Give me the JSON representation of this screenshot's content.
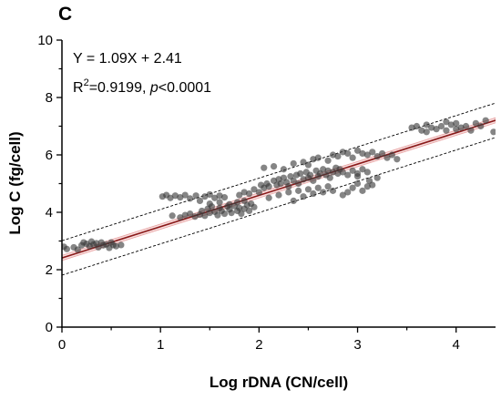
{
  "panel_label": "C",
  "chart_data": {
    "type": "scatter",
    "xlabel": "Log rDNA (CN/cell)",
    "ylabel": "Log C (fg/cell)",
    "xlim": [
      0,
      4.4
    ],
    "ylim": [
      0,
      10
    ],
    "xticks": [
      "0",
      "1",
      "2",
      "3",
      "4"
    ],
    "yticks": [
      "0",
      "2",
      "4",
      "6",
      "8",
      "10"
    ],
    "grid": false,
    "annotations": {
      "equation": "Y = 1.09X + 2.41",
      "r2_prefix": "R",
      "r2_sup": "2",
      "r2_value": "=0.9199, ",
      "p_symbol": "p",
      "p_value": "<0.0001"
    },
    "regression": {
      "slope": 1.09,
      "intercept": 2.41,
      "color": "#8b1a1a"
    },
    "confidence_band_color": "#e8a0a0",
    "prediction_interval": {
      "offset": 0.6,
      "style": "dashed"
    },
    "point_color": "#3a3a3a",
    "points": [
      [
        0.02,
        2.8
      ],
      [
        0.05,
        2.72
      ],
      [
        0.12,
        2.78
      ],
      [
        0.16,
        2.7
      ],
      [
        0.2,
        2.85
      ],
      [
        0.22,
        2.95
      ],
      [
        0.25,
        2.9
      ],
      [
        0.28,
        2.82
      ],
      [
        0.3,
        2.98
      ],
      [
        0.32,
        2.88
      ],
      [
        0.35,
        2.92
      ],
      [
        0.37,
        2.78
      ],
      [
        0.4,
        2.95
      ],
      [
        0.42,
        2.85
      ],
      [
        0.45,
        2.88
      ],
      [
        0.48,
        2.76
      ],
      [
        0.5,
        2.95
      ],
      [
        0.52,
        2.86
      ],
      [
        0.55,
        2.82
      ],
      [
        0.6,
        2.86
      ],
      [
        1.02,
        4.55
      ],
      [
        1.06,
        4.6
      ],
      [
        1.1,
        4.5
      ],
      [
        1.15,
        4.58
      ],
      [
        1.2,
        4.52
      ],
      [
        1.25,
        4.6
      ],
      [
        1.3,
        4.48
      ],
      [
        1.36,
        4.58
      ],
      [
        1.4,
        4.4
      ],
      [
        1.45,
        4.55
      ],
      [
        1.5,
        4.62
      ],
      [
        1.55,
        4.5
      ],
      [
        1.6,
        4.58
      ],
      [
        1.65,
        4.52
      ],
      [
        1.12,
        3.88
      ],
      [
        1.2,
        3.82
      ],
      [
        1.25,
        3.9
      ],
      [
        1.3,
        3.95
      ],
      [
        1.35,
        3.85
      ],
      [
        1.4,
        3.92
      ],
      [
        1.42,
        4.05
      ],
      [
        1.45,
        3.88
      ],
      [
        1.48,
        4.12
      ],
      [
        1.5,
        3.98
      ],
      [
        1.52,
        4.2
      ],
      [
        1.55,
        4.02
      ],
      [
        1.58,
        3.9
      ],
      [
        1.6,
        4.15
      ],
      [
        1.62,
        4.05
      ],
      [
        1.65,
        3.95
      ],
      [
        1.68,
        4.2
      ],
      [
        1.7,
        4.1
      ],
      [
        1.72,
        3.98
      ],
      [
        1.75,
        4.22
      ],
      [
        1.78,
        4.05
      ],
      [
        1.8,
        4.15
      ],
      [
        1.82,
        3.95
      ],
      [
        1.85,
        4.12
      ],
      [
        1.88,
        4.25
      ],
      [
        1.9,
        4.05
      ],
      [
        1.92,
        4.3
      ],
      [
        1.95,
        4.18
      ],
      [
        1.5,
        4.3
      ],
      [
        1.6,
        4.35
      ],
      [
        1.7,
        4.28
      ],
      [
        1.78,
        4.35
      ],
      [
        1.85,
        4.4
      ],
      [
        1.8,
        4.6
      ],
      [
        1.85,
        4.7
      ],
      [
        1.9,
        4.65
      ],
      [
        1.95,
        4.8
      ],
      [
        2.0,
        4.7
      ],
      [
        2.02,
        4.95
      ],
      [
        2.05,
        4.85
      ],
      [
        2.08,
        5.0
      ],
      [
        2.1,
        4.9
      ],
      [
        2.15,
        5.1
      ],
      [
        2.18,
        4.95
      ],
      [
        2.2,
        5.15
      ],
      [
        2.22,
        5.0
      ],
      [
        2.25,
        5.2
      ],
      [
        2.28,
        5.05
      ],
      [
        2.3,
        4.9
      ],
      [
        2.32,
        5.25
      ],
      [
        2.35,
        5.1
      ],
      [
        2.38,
        5.3
      ],
      [
        2.4,
        5.0
      ],
      [
        2.42,
        5.35
      ],
      [
        2.45,
        5.15
      ],
      [
        2.48,
        5.4
      ],
      [
        2.5,
        5.2
      ],
      [
        2.52,
        5.3
      ],
      [
        2.55,
        5.1
      ],
      [
        2.58,
        5.45
      ],
      [
        2.6,
        5.25
      ],
      [
        2.62,
        5.35
      ],
      [
        2.65,
        5.5
      ],
      [
        2.68,
        5.3
      ],
      [
        2.7,
        5.45
      ],
      [
        2.72,
        5.2
      ],
      [
        2.75,
        5.4
      ],
      [
        2.78,
        5.55
      ],
      [
        2.8,
        5.35
      ],
      [
        2.82,
        5.5
      ],
      [
        2.85,
        5.4
      ],
      [
        2.9,
        5.3
      ],
      [
        2.95,
        5.45
      ],
      [
        3.0,
        5.35
      ],
      [
        3.05,
        5.5
      ],
      [
        3.1,
        5.4
      ],
      [
        2.1,
        4.5
      ],
      [
        2.2,
        4.6
      ],
      [
        2.3,
        4.7
      ],
      [
        2.4,
        4.75
      ],
      [
        2.5,
        4.8
      ],
      [
        2.6,
        4.85
      ],
      [
        2.7,
        4.9
      ],
      [
        2.35,
        4.4
      ],
      [
        2.45,
        4.55
      ],
      [
        2.55,
        4.65
      ],
      [
        2.65,
        4.7
      ],
      [
        2.75,
        4.75
      ],
      [
        2.85,
        4.6
      ],
      [
        2.05,
        5.55
      ],
      [
        2.15,
        5.6
      ],
      [
        2.25,
        5.5
      ],
      [
        2.35,
        5.7
      ],
      [
        2.45,
        5.75
      ],
      [
        2.5,
        5.65
      ],
      [
        2.55,
        5.85
      ],
      [
        2.6,
        5.9
      ],
      [
        2.7,
        5.8
      ],
      [
        2.75,
        6.0
      ],
      [
        2.8,
        5.95
      ],
      [
        2.85,
        6.1
      ],
      [
        2.9,
        6.05
      ],
      [
        2.95,
        5.9
      ],
      [
        3.0,
        6.15
      ],
      [
        3.05,
        6.05
      ],
      [
        3.1,
        6.0
      ],
      [
        3.15,
        6.1
      ],
      [
        3.2,
        5.95
      ],
      [
        3.25,
        6.05
      ],
      [
        3.3,
        5.9
      ],
      [
        3.35,
        6.0
      ],
      [
        3.4,
        5.85
      ],
      [
        2.9,
        4.7
      ],
      [
        2.95,
        4.85
      ],
      [
        3.0,
        5.0
      ],
      [
        3.05,
        4.75
      ],
      [
        3.1,
        4.9
      ],
      [
        3.12,
        5.1
      ],
      [
        3.15,
        4.95
      ],
      [
        3.0,
        5.25
      ],
      [
        3.2,
        5.2
      ],
      [
        3.55,
        6.95
      ],
      [
        3.6,
        7.0
      ],
      [
        3.65,
        6.85
      ],
      [
        3.7,
        7.05
      ],
      [
        3.75,
        6.95
      ],
      [
        3.8,
        6.9
      ],
      [
        3.85,
        7.0
      ],
      [
        3.9,
        6.85
      ],
      [
        3.95,
        7.05
      ],
      [
        4.0,
        7.1
      ],
      [
        4.05,
        6.95
      ],
      [
        4.1,
        7.0
      ],
      [
        4.15,
        6.85
      ],
      [
        4.2,
        7.1
      ],
      [
        4.3,
        7.2
      ],
      [
        4.38,
        6.8
      ],
      [
        3.7,
        6.8
      ],
      [
        3.9,
        7.15
      ],
      [
        4.0,
        6.9
      ],
      [
        4.25,
        7.0
      ]
    ]
  }
}
